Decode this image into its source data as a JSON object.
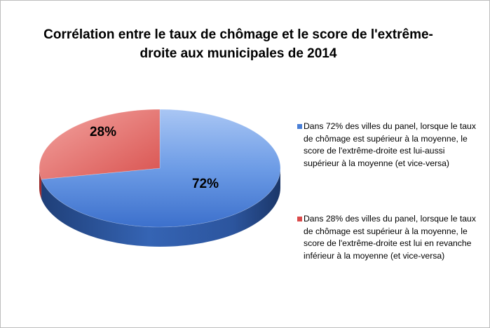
{
  "chart_data": {
    "type": "pie",
    "title": "Corrélation entre le taux de chômage et le score de l'extrême-droite aux municipales de 2014",
    "slices": [
      {
        "value": 72,
        "label": "72%",
        "legend": "Dans 72% des villes du panel, lorsque le taux de chômage est supérieur à la moyenne, le score de l'extrême-droite est lui-aussi supérieur à la moyenne (et vice-versa)",
        "color": "#4a7fd6"
      },
      {
        "value": 28,
        "label": "28%",
        "legend": "Dans 28% des villes du panel, lorsque le taux de chômage est supérieur à la moyenne, le score de l'extrême-droite est lui en revanche inférieur à la moyenne (et vice-versa)",
        "color": "#db4b4b"
      }
    ],
    "legend_position": "right",
    "style": "3d"
  }
}
